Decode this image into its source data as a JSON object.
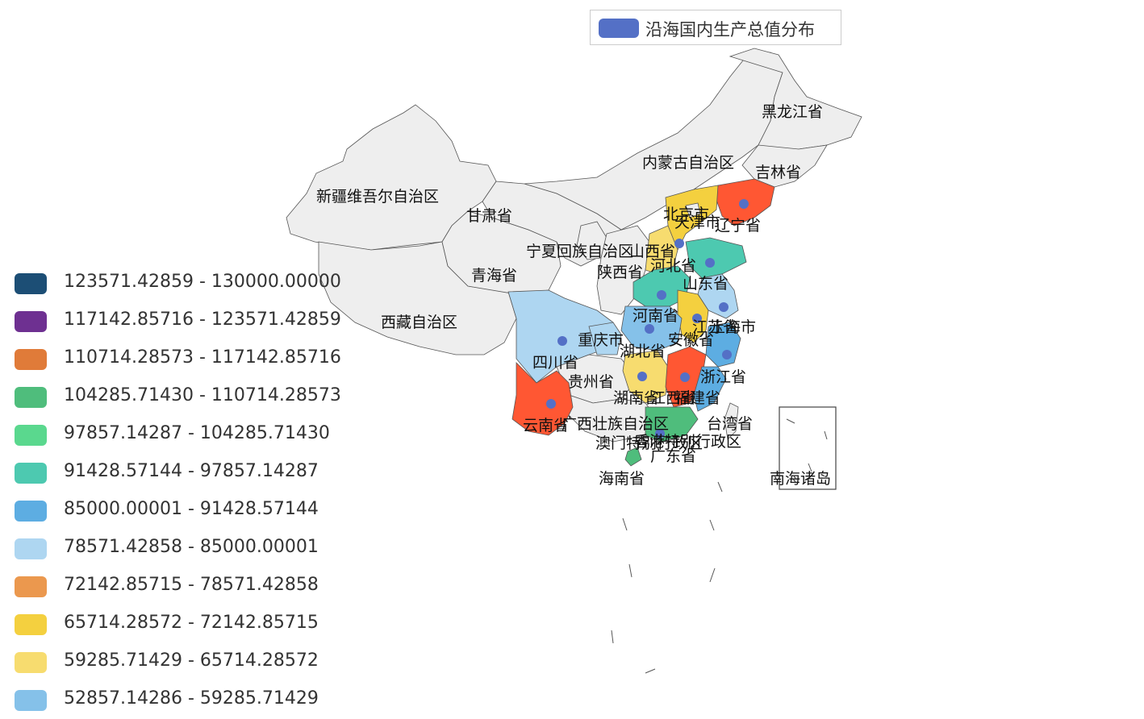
{
  "legend": {
    "series_name": "沿海国内生产总值分布",
    "color": "#5470c6"
  },
  "visual_map": [
    {
      "label": "123571.42859 - 130000.00000",
      "color": "#1c4e75"
    },
    {
      "label": "117142.85716 - 123571.42859",
      "color": "#6e3091"
    },
    {
      "label": "110714.28573 - 117142.85716",
      "color": "#e07b39"
    },
    {
      "label": "104285.71430 - 110714.28573",
      "color": "#4fbd7c"
    },
    {
      "label": "97857.14287 - 104285.71430",
      "color": "#5ad88e"
    },
    {
      "label": "91428.57144 - 97857.14287",
      "color": "#4dc9b0"
    },
    {
      "label": "85000.00001 - 91428.57144",
      "color": "#5dade2"
    },
    {
      "label": "78571.42858 - 85000.00001",
      "color": "#aed6f1"
    },
    {
      "label": "72142.85715 - 78571.42858",
      "color": "#eb984e"
    },
    {
      "label": "65714.28572 - 72142.85715",
      "color": "#f4d03f"
    },
    {
      "label": "59285.71429 - 65714.28572",
      "color": "#f7dc6f"
    },
    {
      "label": "52857.14286 - 59285.71429",
      "color": "#85c1e9"
    }
  ],
  "map": {
    "default_color": "#eeeeee",
    "highlight_color": "#ff5733",
    "dot_color": "#5470c6",
    "region_names": [
      "黑龙江省",
      "内蒙古自治区",
      "吉林省",
      "新疆维吾尔自治区",
      "甘肃省",
      "北京市",
      "天津市",
      "辽宁省",
      "宁夏回族自治区",
      "山西省",
      "青海省",
      "陕西省",
      "河北省",
      "山东省",
      "西藏自治区",
      "河南省",
      "江苏省",
      "上海市",
      "重庆市",
      "安徽省",
      "湖北省",
      "四川省",
      "贵州省",
      "浙江省",
      "湖南省",
      "江西省",
      "福建省",
      "云南省",
      "广西壮族自治区",
      "台湾省",
      "澳门特别行政区",
      "香港特别行政区",
      "广东省",
      "海南省",
      "南海诸岛"
    ]
  }
}
